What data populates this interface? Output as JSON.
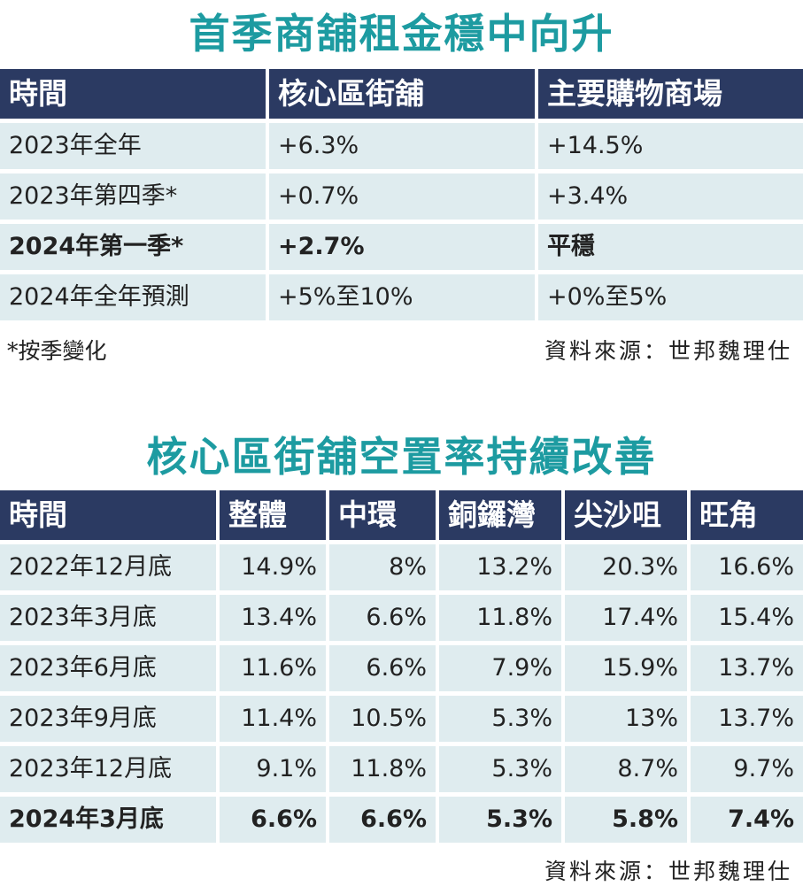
{
  "table1": {
    "title": "首季商舖租金穩中向升",
    "headers": [
      "時間",
      "核心區街舖",
      "主要購物商場"
    ],
    "rows": [
      [
        "2023年全年",
        "+6.3%",
        "+14.5%"
      ],
      [
        "2023年第四季*",
        "+0.7%",
        "+3.4%"
      ],
      [
        "2024年第一季*",
        "+2.7%",
        "平穩"
      ],
      [
        "2024年全年預測",
        "+5%至10%",
        "+0%至5%"
      ]
    ],
    "footnote": "*按季變化",
    "source": "資料來源：世邦魏理仕"
  },
  "table2": {
    "title": "核心區街舖空置率持續改善",
    "headers": [
      "時間",
      "整體",
      "中環",
      "銅鑼灣",
      "尖沙咀",
      "旺角"
    ],
    "rows": [
      [
        "2022年12月底",
        "14.9%",
        "8%",
        "13.2%",
        "20.3%",
        "16.6%"
      ],
      [
        "2023年3月底",
        "13.4%",
        "6.6%",
        "11.8%",
        "17.4%",
        "15.4%"
      ],
      [
        "2023年6月底",
        "11.6%",
        "6.6%",
        "7.9%",
        "15.9%",
        "13.7%"
      ],
      [
        "2023年9月底",
        "11.4%",
        "10.5%",
        "5.3%",
        "13%",
        "13.7%"
      ],
      [
        "2023年12月底",
        "9.1%",
        "11.8%",
        "5.3%",
        "8.7%",
        "9.7%"
      ],
      [
        "2024年3月底",
        "6.6%",
        "6.6%",
        "5.3%",
        "5.8%",
        "7.4%"
      ]
    ],
    "source": "資料來源：世邦魏理仕"
  },
  "colors": {
    "title": "#1d9ba1",
    "header_bg": "#2b3a62",
    "cell_bg": "#dfecef"
  }
}
